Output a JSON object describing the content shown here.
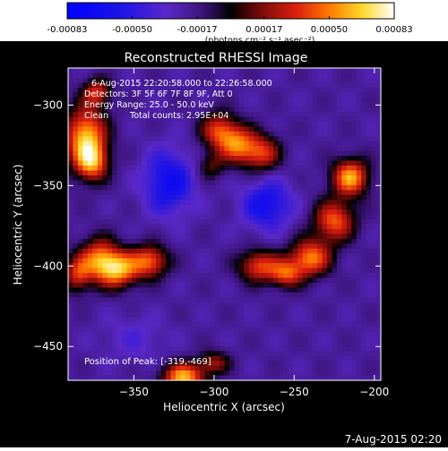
{
  "chart_data": {
    "type": "heatmap",
    "title": "Reconstructed RHESSI Image",
    "xlabel": "Heliocentric X (arcsec)",
    "ylabel": "Heliocentric Y (arcsec)",
    "xlim": [
      -391,
      -196
    ],
    "ylim": [
      -471,
      -277
    ],
    "xticks": [
      -350,
      -300,
      -250,
      -200
    ],
    "yticks": [
      -300,
      -350,
      -400,
      -450
    ],
    "colorbar": {
      "min": -0.00083,
      "max": 0.00083,
      "ticks": [
        "-0.00083",
        "-0.00050",
        "-0.00017",
        "0.00017",
        "0.00050",
        "0.00083"
      ],
      "tick_values": [
        -0.00083,
        -0.0005,
        -0.00017,
        0.00017,
        0.0005,
        0.00083
      ],
      "unit_label": "(photons cm⁻² s⁻¹ asec⁻²)"
    },
    "annotations": {
      "time_range": "6-Aug-2015 22:20:58.000 to 22:26:58.000",
      "detectors": "Detectors: 3F 5F 6F 7F 8F 9F, Att 0",
      "energy": "Energy Range: 25.0 - 50.0 keV",
      "method": "Clean",
      "counts": "Total counts: 2.95E+04",
      "peak": "Position of Peak: [-319,-469]"
    },
    "peak": {
      "x": -319,
      "y": -469
    },
    "sources": [
      {
        "x": -380,
        "y": -320,
        "amp": 0.00085,
        "sx": 9,
        "sy": 13
      },
      {
        "x": -376,
        "y": -336,
        "amp": 0.0006,
        "sx": 7,
        "sy": 8
      },
      {
        "x": -373,
        "y": -292,
        "amp": 0.0005,
        "sx": 6,
        "sy": 6
      },
      {
        "x": -297,
        "y": -316,
        "amp": 0.00058,
        "sx": 8,
        "sy": 8
      },
      {
        "x": -285,
        "y": -325,
        "amp": 0.00062,
        "sx": 8,
        "sy": 8
      },
      {
        "x": -270,
        "y": -330,
        "amp": 0.00055,
        "sx": 8,
        "sy": 8
      },
      {
        "x": -302,
        "y": -338,
        "amp": 0.0003,
        "sx": 6,
        "sy": 6
      },
      {
        "x": -215,
        "y": -345,
        "amp": 0.0008,
        "sx": 8,
        "sy": 8
      },
      {
        "x": -225,
        "y": -372,
        "amp": 0.00065,
        "sx": 9,
        "sy": 9
      },
      {
        "x": -240,
        "y": -395,
        "amp": 0.00072,
        "sx": 9,
        "sy": 8
      },
      {
        "x": -272,
        "y": -400,
        "amp": 0.0006,
        "sx": 9,
        "sy": 7
      },
      {
        "x": -255,
        "y": -405,
        "amp": 0.00055,
        "sx": 7,
        "sy": 6
      },
      {
        "x": -372,
        "y": -395,
        "amp": 0.0006,
        "sx": 8,
        "sy": 9
      },
      {
        "x": -360,
        "y": -402,
        "amp": 0.0008,
        "sx": 9,
        "sy": 8
      },
      {
        "x": -340,
        "y": -397,
        "amp": 0.00065,
        "sx": 8,
        "sy": 7
      },
      {
        "x": -385,
        "y": -405,
        "amp": 0.00052,
        "sx": 6,
        "sy": 8
      },
      {
        "x": -319,
        "y": -469,
        "amp": 0.00083,
        "sx": 9,
        "sy": 6
      },
      {
        "x": -300,
        "y": -460,
        "amp": 0.0004,
        "sx": 7,
        "sy": 5
      },
      {
        "x": -328,
        "y": -348,
        "amp": -0.00045,
        "sx": 11,
        "sy": 14
      },
      {
        "x": -267,
        "y": -362,
        "amp": -0.00042,
        "sx": 11,
        "sy": 11
      },
      {
        "x": -350,
        "y": -445,
        "amp": -0.00015,
        "sx": 14,
        "sy": 10
      }
    ]
  }
}
